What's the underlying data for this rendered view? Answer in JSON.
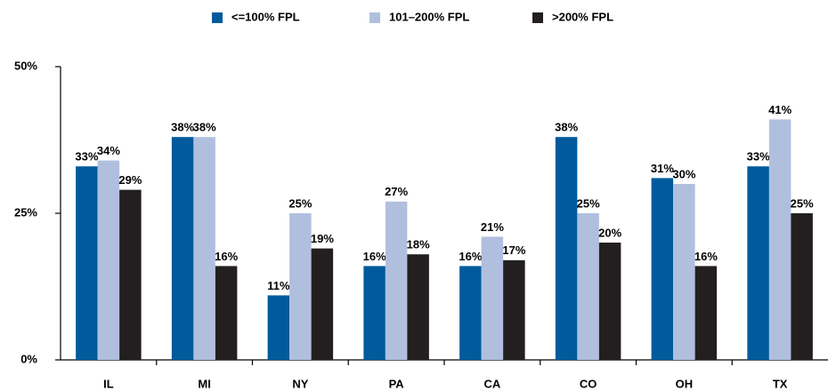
{
  "chart_data": {
    "type": "bar",
    "categories": [
      "IL",
      "MI",
      "NY",
      "PA",
      "CA",
      "CO",
      "OH",
      "TX"
    ],
    "series": [
      {
        "name": "<=100% FPL",
        "color": "#005a9c",
        "values": [
          33,
          38,
          11,
          16,
          16,
          38,
          31,
          33
        ],
        "value_labels": [
          "33%",
          "38%",
          "11%",
          "16%",
          "16%",
          "38%",
          "31%",
          "33%"
        ]
      },
      {
        "name": "101–200% FPL",
        "color": "#b0bfdd",
        "values": [
          34,
          38,
          25,
          27,
          21,
          25,
          30,
          41
        ],
        "value_labels": [
          "34%",
          "38%",
          "25%",
          "27%",
          "21%",
          "25%",
          "30%",
          "41%"
        ]
      },
      {
        "name": ">200% FPL",
        "color": "#231f20",
        "values": [
          29,
          16,
          19,
          18,
          17,
          20,
          16,
          25
        ],
        "value_labels": [
          "29%",
          "16%",
          "19%",
          "18%",
          "17%",
          "20%",
          "16%",
          "25%"
        ]
      }
    ],
    "ylim": [
      0,
      50
    ],
    "yticks": [
      {
        "value": 0,
        "label": "0%"
      },
      {
        "value": 25,
        "label": "25%"
      },
      {
        "value": 50,
        "label": "50%"
      }
    ],
    "legend": "top"
  }
}
